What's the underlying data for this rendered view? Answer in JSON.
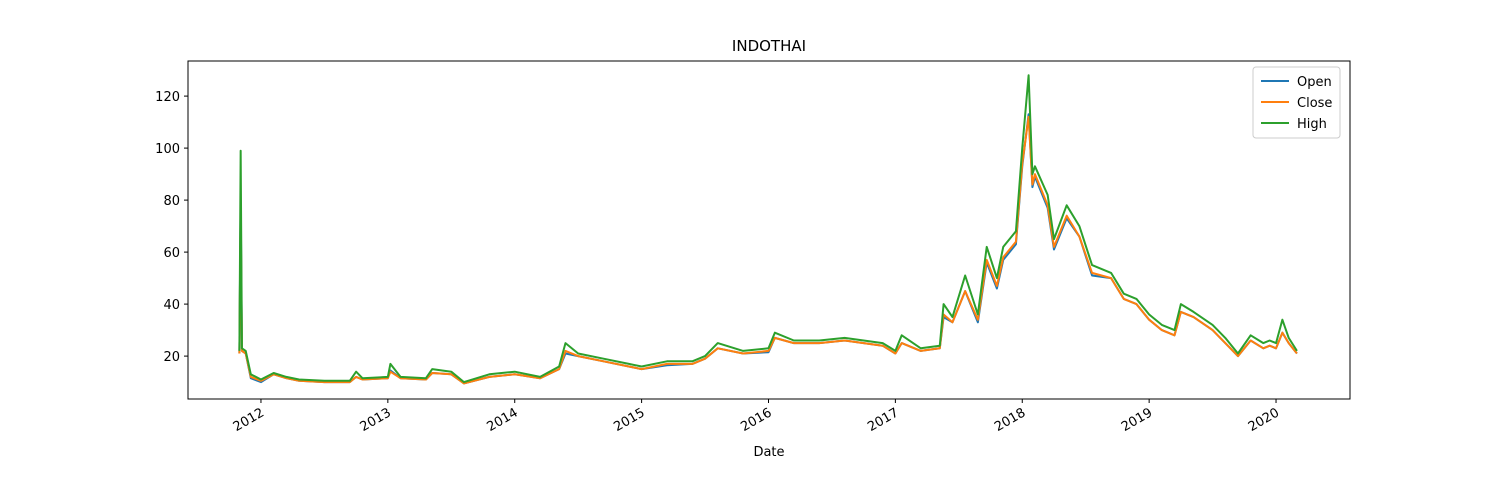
{
  "chart_data": {
    "type": "line",
    "title": "INDOTHAI",
    "x_label": "Date",
    "x": [
      2011.83,
      2011.84,
      2011.85,
      2011.88,
      2011.92,
      2012.0,
      2012.1,
      2012.2,
      2012.3,
      2012.5,
      2012.7,
      2012.75,
      2012.8,
      2013.0,
      2013.02,
      2013.1,
      2013.3,
      2013.35,
      2013.5,
      2013.6,
      2013.8,
      2014.0,
      2014.2,
      2014.35,
      2014.4,
      2014.5,
      2014.7,
      2014.9,
      2015.0,
      2015.2,
      2015.4,
      2015.5,
      2015.6,
      2015.8,
      2016.0,
      2016.05,
      2016.2,
      2016.4,
      2016.6,
      2016.9,
      2017.0,
      2017.05,
      2017.2,
      2017.35,
      2017.38,
      2017.45,
      2017.55,
      2017.65,
      2017.72,
      2017.8,
      2017.85,
      2017.95,
      2018.0,
      2018.05,
      2018.08,
      2018.1,
      2018.2,
      2018.25,
      2018.35,
      2018.45,
      2018.55,
      2018.7,
      2018.8,
      2018.9,
      2019.0,
      2019.1,
      2019.2,
      2019.25,
      2019.35,
      2019.5,
      2019.6,
      2019.7,
      2019.8,
      2019.9,
      2019.95,
      2020.0,
      2020.05,
      2020.1,
      2020.165
    ],
    "series": [
      {
        "name": "Open",
        "color": "#1f77b4",
        "values": [
          21,
          80,
          22,
          21,
          11.5,
          10,
          13,
          11.5,
          10.5,
          10,
          10,
          12,
          11,
          11.5,
          14.5,
          11.5,
          11,
          13.5,
          13,
          9.5,
          12,
          13,
          11.5,
          15,
          21,
          20,
          18,
          16,
          15,
          16.5,
          17,
          19,
          23,
          21,
          21.5,
          27,
          25,
          25,
          26,
          24,
          21,
          25,
          22,
          23,
          35,
          33,
          45,
          33,
          56,
          46,
          57,
          63,
          93,
          113,
          85,
          89,
          77,
          61,
          73,
          66,
          51,
          50,
          42,
          40,
          34,
          30,
          28,
          37,
          35,
          30,
          25,
          20,
          26,
          23,
          24,
          23,
          29,
          25,
          21
        ]
      },
      {
        "name": "Close",
        "color": "#ff7f0e",
        "values": [
          21,
          76,
          22,
          21,
          12,
          10.5,
          13,
          11.5,
          10.5,
          10,
          10,
          12,
          11,
          11.5,
          14,
          11.5,
          11,
          13.5,
          13,
          9.5,
          12,
          13,
          11.5,
          15,
          22,
          20,
          18,
          16,
          15,
          17,
          17,
          19,
          23,
          21,
          22,
          27,
          25,
          25,
          26,
          24,
          21,
          25,
          22,
          23,
          36,
          33,
          45,
          34,
          57,
          47,
          58,
          64,
          94,
          112,
          86,
          90,
          78,
          62,
          74,
          66,
          52,
          50,
          42,
          40,
          34,
          30,
          28,
          37,
          35,
          30,
          25,
          20,
          26,
          23,
          24,
          23,
          29,
          25,
          21
        ]
      },
      {
        "name": "High",
        "color": "#2ca02c",
        "values": [
          22,
          99,
          23,
          22,
          13,
          11,
          13.5,
          12,
          11,
          10.5,
          10.5,
          14,
          11.5,
          12,
          17,
          12,
          11.5,
          15,
          14,
          10,
          13,
          14,
          12,
          16,
          25,
          21,
          19,
          17,
          16,
          18,
          18,
          20,
          25,
          22,
          23,
          29,
          26,
          26,
          27,
          25,
          22,
          28,
          23,
          24,
          40,
          35,
          51,
          36,
          62,
          50,
          62,
          68,
          100,
          128,
          90,
          93,
          82,
          65,
          78,
          70,
          55,
          52,
          44,
          42,
          36,
          32,
          30,
          40,
          37,
          32,
          27,
          21,
          28,
          25,
          26,
          25,
          34,
          27,
          22
        ]
      }
    ],
    "xlim": [
      2011.425,
      2020.583
    ],
    "xticks": [
      2012,
      2013,
      2014,
      2015,
      2016,
      2017,
      2018,
      2019,
      2020
    ],
    "ylim": [
      3.5,
      133.5
    ],
    "yticks": [
      20,
      40,
      60,
      80,
      100,
      120
    ],
    "legend": "upper right"
  }
}
